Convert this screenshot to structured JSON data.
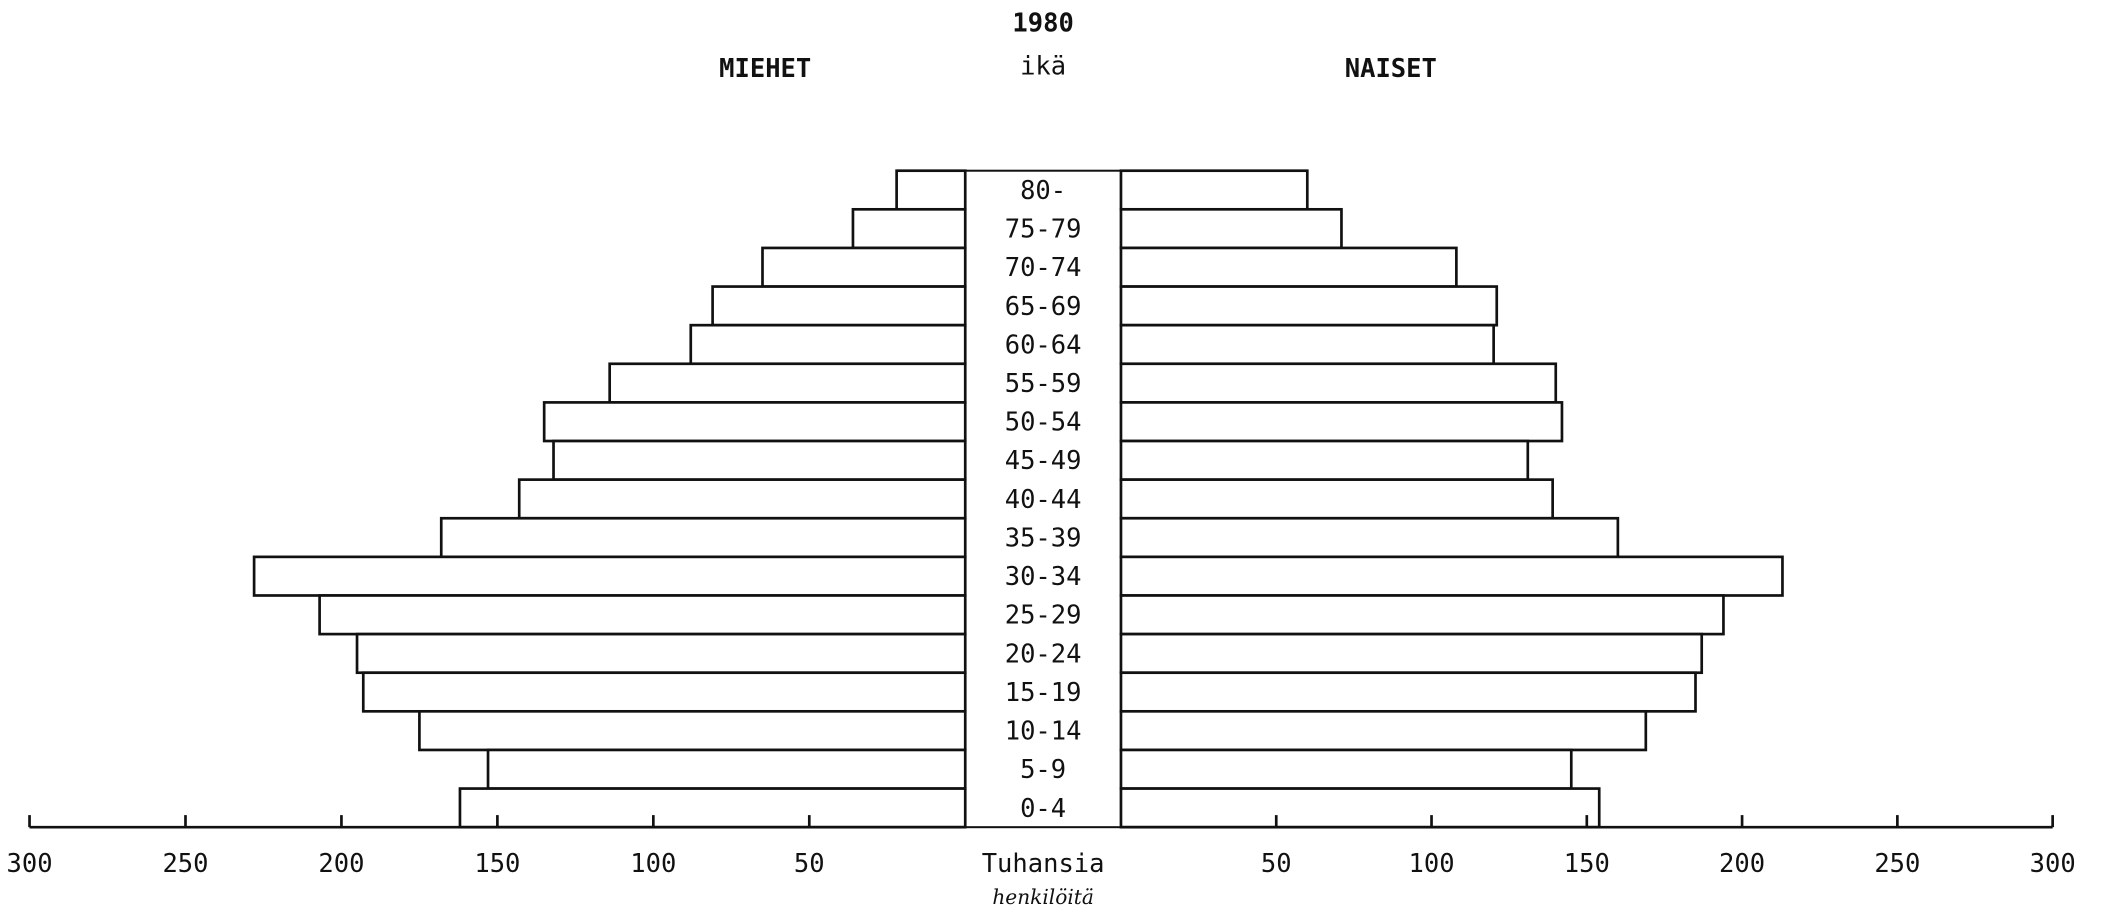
{
  "chart_data": {
    "type": "population_pyramid",
    "title": "1980",
    "category_label": "ikä",
    "x_label": "Tuhansia",
    "annotation": "henkilöitä",
    "categories": [
      "80-",
      "75-79",
      "70-74",
      "65-69",
      "60-64",
      "55-59",
      "50-54",
      "45-49",
      "40-44",
      "35-39",
      "30-34",
      "25-29",
      "20-24",
      "15-19",
      "10-14",
      "5-9",
      "0-4"
    ],
    "series": [
      {
        "name": "MIEHET",
        "side": "left",
        "color": "#ffffff",
        "values": [
          22,
          36,
          65,
          81,
          88,
          114,
          135,
          132,
          143,
          168,
          228,
          207,
          195,
          193,
          175,
          153,
          162
        ]
      },
      {
        "name": "NAISET",
        "side": "right",
        "color": "#ffffff",
        "values": [
          60,
          71,
          108,
          121,
          120,
          140,
          142,
          131,
          139,
          160,
          213,
          194,
          187,
          185,
          169,
          145,
          154
        ]
      }
    ],
    "xlim": [
      0,
      300
    ],
    "xticks": [
      50,
      100,
      150,
      200,
      250,
      300
    ]
  }
}
